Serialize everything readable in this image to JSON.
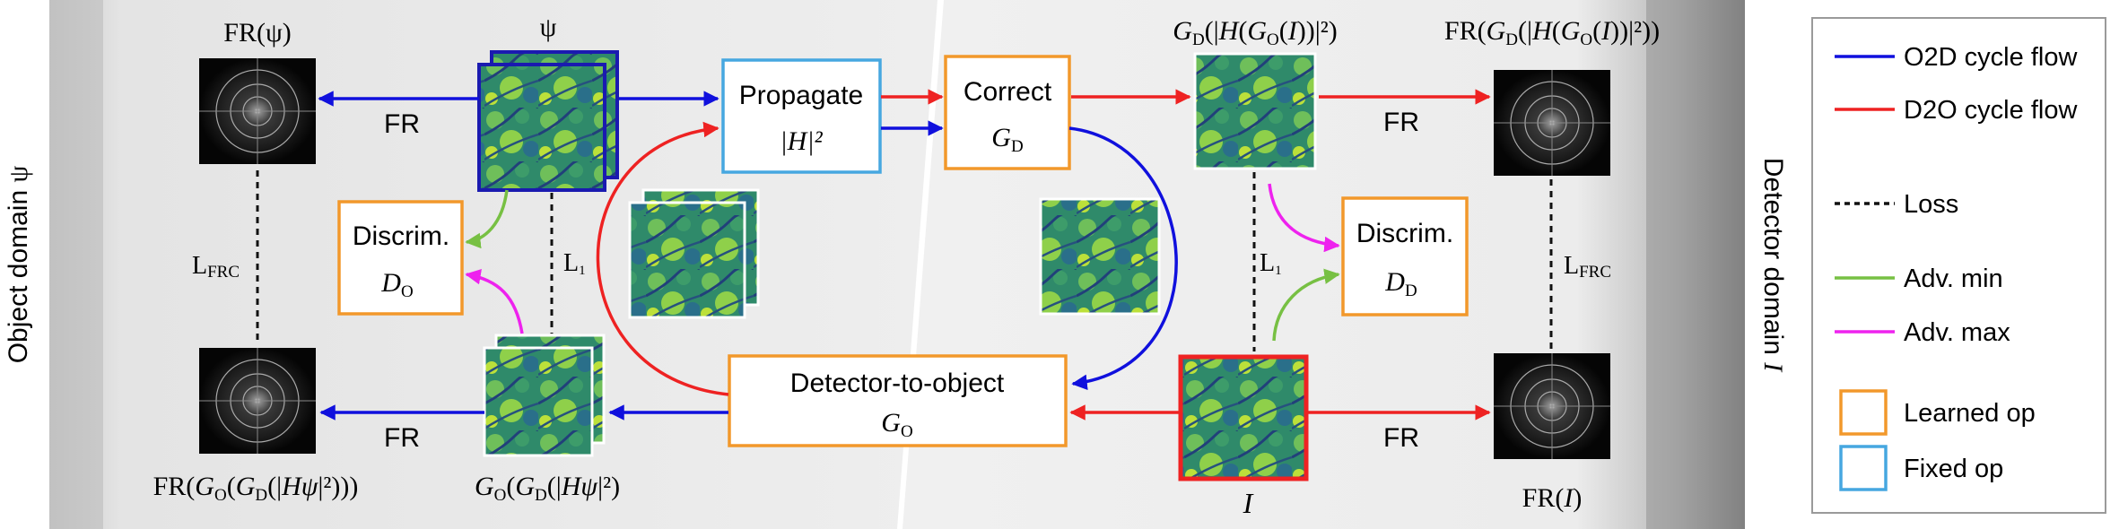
{
  "domains": {
    "object": {
      "prefix": "Object domain ",
      "symbol": "ψ"
    },
    "detector": {
      "prefix": "Detector domain ",
      "symbol": "I"
    }
  },
  "operators": {
    "propagate": {
      "title": "Propagate",
      "sub": "|H|²",
      "type": "fixed"
    },
    "correct": {
      "title": "Correct",
      "sub_main": "G",
      "sub_index": "D",
      "type": "learned"
    },
    "detector_to_object": {
      "title": "Detector-to-object",
      "sub_main": "G",
      "sub_index": "O",
      "type": "learned"
    },
    "discrim_object": {
      "title": "Discrim.",
      "sub_main": "D",
      "sub_index": "O",
      "type": "learned"
    },
    "discrim_detector": {
      "title": "Discrim.",
      "sub_main": "D",
      "sub_index": "D",
      "type": "learned"
    }
  },
  "image_labels": {
    "fr_psi": {
      "a": "FR(ψ)"
    },
    "psi": {
      "a": "ψ"
    },
    "gd_h_go": {
      "a": "G",
      "a_sub": "D",
      "b": "(|",
      "c": "H",
      "d": "(",
      "e": "G",
      "e_sub": "O",
      "f": "(",
      "g": "I",
      "h": "))|²)"
    },
    "fr_gd_h_go": {
      "a": "FR(",
      "b": "G",
      "b_sub": "D",
      "c": "(|",
      "d": "H",
      "e": "(",
      "f": "G",
      "f_sub": "O",
      "g": "(",
      "h": "I",
      "i": "))|²))"
    },
    "fr_go_gd": {
      "a": "FR(",
      "b": "G",
      "b_sub": "O",
      "c": "(",
      "d": "G",
      "d_sub": "D",
      "e": "(|",
      "f": "Hψ",
      "g": "|²)))"
    },
    "go_gd": {
      "a": "G",
      "a_sub": "O",
      "b": "(",
      "c": "G",
      "c_sub": "D",
      "d": "(|",
      "e": "Hψ",
      "f": "|²)"
    },
    "i_label": {
      "a": "I"
    },
    "fr_i": {
      "a": "FR(",
      "b": "I",
      "c": ")"
    }
  },
  "edge_labels": {
    "fr_top_left": "FR",
    "fr_bottom_left": "FR",
    "fr_top_right": "FR",
    "fr_bottom_right": "FR",
    "l_frc_left": {
      "main": "L",
      "sub": "FRC"
    },
    "l_frc_right": {
      "main": "L",
      "sub": "FRC"
    },
    "l1_left": {
      "main": "L",
      "sub": "1"
    },
    "l1_right": {
      "main": "L",
      "sub": "1"
    }
  },
  "legend": {
    "items": [
      {
        "label": "O2D cycle flow",
        "kind": "line",
        "color": "#1010dd"
      },
      {
        "label": "D2O cycle flow",
        "kind": "line",
        "color": "#ee2222"
      },
      {
        "label": "Loss",
        "kind": "dash",
        "color": "#111111"
      },
      {
        "label": "Adv. min",
        "kind": "line",
        "color": "#77c043"
      },
      {
        "label": "Adv. max",
        "kind": "line",
        "color": "#ee22ee"
      },
      {
        "label": "Learned op",
        "kind": "box",
        "color": "#f2982b"
      },
      {
        "label": "Fixed op",
        "kind": "box",
        "color": "#46a7e0"
      }
    ]
  },
  "colors": {
    "o2d": "#1010dd",
    "d2o": "#ee2222",
    "adv_min": "#77c043",
    "adv_max": "#ee22ee",
    "learned": "#f2982b",
    "fixed": "#46a7e0"
  }
}
